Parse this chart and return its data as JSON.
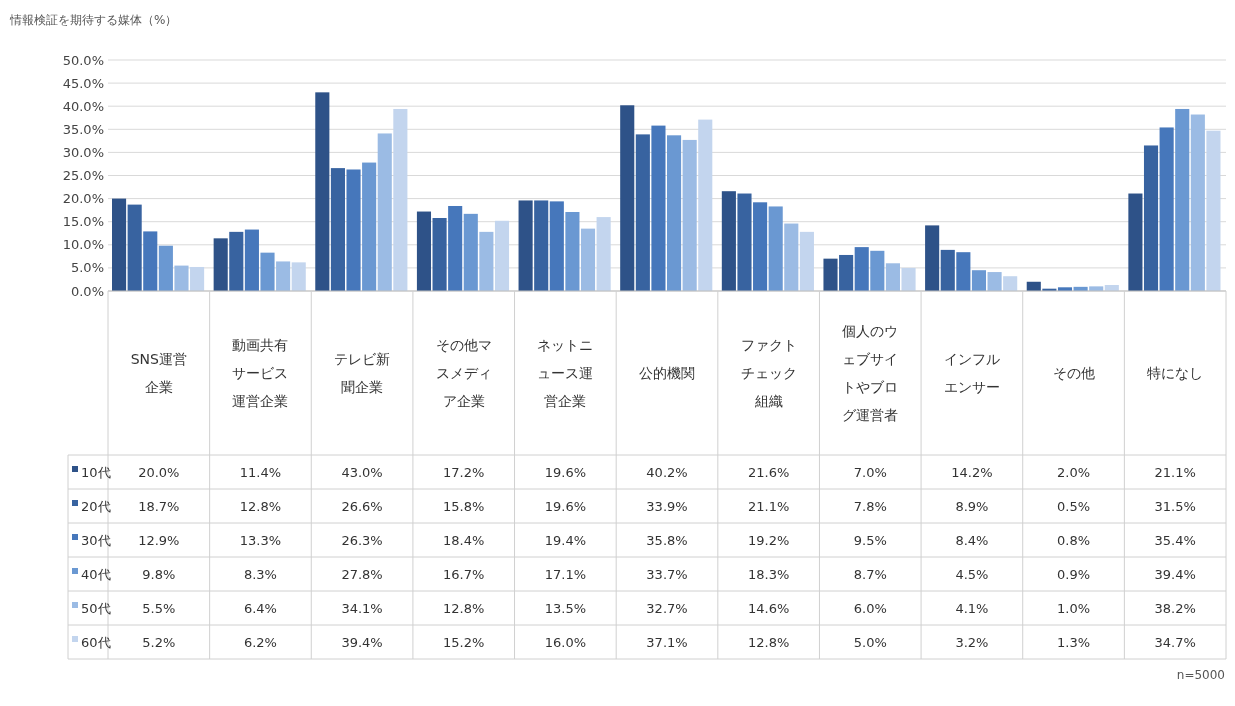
{
  "chart_data": {
    "type": "bar",
    "ylabel": "情報検証を期待する媒体（%）",
    "categories": [
      "SNS運営企業",
      "動画共有サービス運営企業",
      "テレビ新聞企業",
      "その他マスメディア企業",
      "ネットニュース運営企業",
      "公的機関",
      "ファクトチェック組織",
      "個人のウェブサイトやブログ運営者",
      "インフルエンサー",
      "その他",
      "特になし"
    ],
    "series": [
      {
        "name": "10代",
        "color": "#2e5288",
        "values": [
          20.0,
          11.4,
          43.0,
          17.2,
          19.6,
          40.2,
          21.6,
          7.0,
          14.2,
          2.0,
          21.1
        ],
        "value_labels": [
          "20.0%",
          "11.4%",
          "43.0%",
          "17.2%",
          "19.6%",
          "40.2%",
          "21.6%",
          "7.0%",
          "14.2%",
          "2.0%",
          "21.1%"
        ]
      },
      {
        "name": "20代",
        "color": "#3863a0",
        "values": [
          18.7,
          12.8,
          26.6,
          15.8,
          19.6,
          33.9,
          21.1,
          7.8,
          8.9,
          0.5,
          31.5
        ],
        "value_labels": [
          "18.7%",
          "12.8%",
          "26.6%",
          "15.8%",
          "19.6%",
          "33.9%",
          "21.1%",
          "7.8%",
          "8.9%",
          "0.5%",
          "31.5%"
        ]
      },
      {
        "name": "30代",
        "color": "#4677bb",
        "values": [
          12.9,
          13.3,
          26.3,
          18.4,
          19.4,
          35.8,
          19.2,
          9.5,
          8.4,
          0.8,
          35.4
        ],
        "value_labels": [
          "12.9%",
          "13.3%",
          "26.3%",
          "18.4%",
          "19.4%",
          "35.8%",
          "19.2%",
          "9.5%",
          "8.4%",
          "0.8%",
          "35.4%"
        ]
      },
      {
        "name": "40代",
        "color": "#6a98d2",
        "values": [
          9.8,
          8.3,
          27.8,
          16.7,
          17.1,
          33.7,
          18.3,
          8.7,
          4.5,
          0.9,
          39.4
        ],
        "value_labels": [
          "9.8%",
          "8.3%",
          "27.8%",
          "16.7%",
          "17.1%",
          "33.7%",
          "18.3%",
          "8.7%",
          "4.5%",
          "0.9%",
          "39.4%"
        ]
      },
      {
        "name": "50代",
        "color": "#9bbbe4",
        "values": [
          5.5,
          6.4,
          34.1,
          12.8,
          13.5,
          32.7,
          14.6,
          6.0,
          4.1,
          1.0,
          38.2
        ],
        "value_labels": [
          "5.5%",
          "6.4%",
          "34.1%",
          "12.8%",
          "13.5%",
          "32.7%",
          "14.6%",
          "6.0%",
          "4.1%",
          "1.0%",
          "38.2%"
        ]
      },
      {
        "name": "60代",
        "color": "#c3d5ee",
        "values": [
          5.2,
          6.2,
          39.4,
          15.2,
          16.0,
          37.1,
          12.8,
          5.0,
          3.2,
          1.3,
          34.7
        ],
        "value_labels": [
          "5.2%",
          "6.2%",
          "39.4%",
          "15.2%",
          "16.0%",
          "37.1%",
          "12.8%",
          "5.0%",
          "3.2%",
          "1.3%",
          "34.7%"
        ]
      }
    ],
    "ylim": [
      0,
      50
    ],
    "yticks": [
      {
        "value": 0,
        "label": "0.0%"
      },
      {
        "value": 5,
        "label": "5.0%"
      },
      {
        "value": 10,
        "label": "10.0%"
      },
      {
        "value": 15,
        "label": "15.0%"
      },
      {
        "value": 20,
        "label": "20.0%"
      },
      {
        "value": 25,
        "label": "25.0%"
      },
      {
        "value": 30,
        "label": "30.0%"
      },
      {
        "value": 35,
        "label": "35.0%"
      },
      {
        "value": 40,
        "label": "40.0%"
      },
      {
        "value": 45,
        "label": "45.0%"
      },
      {
        "value": 50,
        "label": "50.0%"
      }
    ],
    "grid": "y",
    "legend": "bottom",
    "annotations": [
      "n=5000"
    ]
  }
}
